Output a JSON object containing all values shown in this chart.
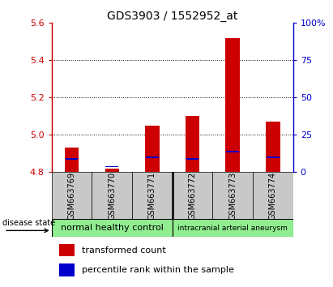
{
  "title": "GDS3903 / 1552952_at",
  "samples": [
    "GSM663769",
    "GSM663770",
    "GSM663771",
    "GSM663772",
    "GSM663773",
    "GSM663774"
  ],
  "red_values": [
    4.93,
    4.82,
    5.05,
    5.1,
    5.52,
    5.07
  ],
  "blue_values": [
    4.87,
    4.83,
    4.88,
    4.87,
    4.91,
    4.88
  ],
  "ymin": 4.8,
  "ymax": 5.6,
  "yright_min": 0,
  "yright_max": 100,
  "yticks_left": [
    4.8,
    5.0,
    5.2,
    5.4,
    5.6
  ],
  "yticks_right": [
    0,
    25,
    50,
    75,
    100
  ],
  "group1_label": "normal healthy control",
  "group2_label": "intracranial arterial aneurysm",
  "legend_red": "transformed count",
  "legend_blue": "percentile rank within the sample",
  "disease_state_label": "disease state",
  "bar_color": "#cc0000",
  "blue_color": "#0000cc",
  "group_color": "#90ee90",
  "gray_color": "#c8c8c8",
  "bar_width": 0.35,
  "bar_bottom": 4.8,
  "title_fontsize": 10,
  "tick_fontsize": 8,
  "sample_fontsize": 7,
  "group_fontsize": 8,
  "legend_fontsize": 8
}
